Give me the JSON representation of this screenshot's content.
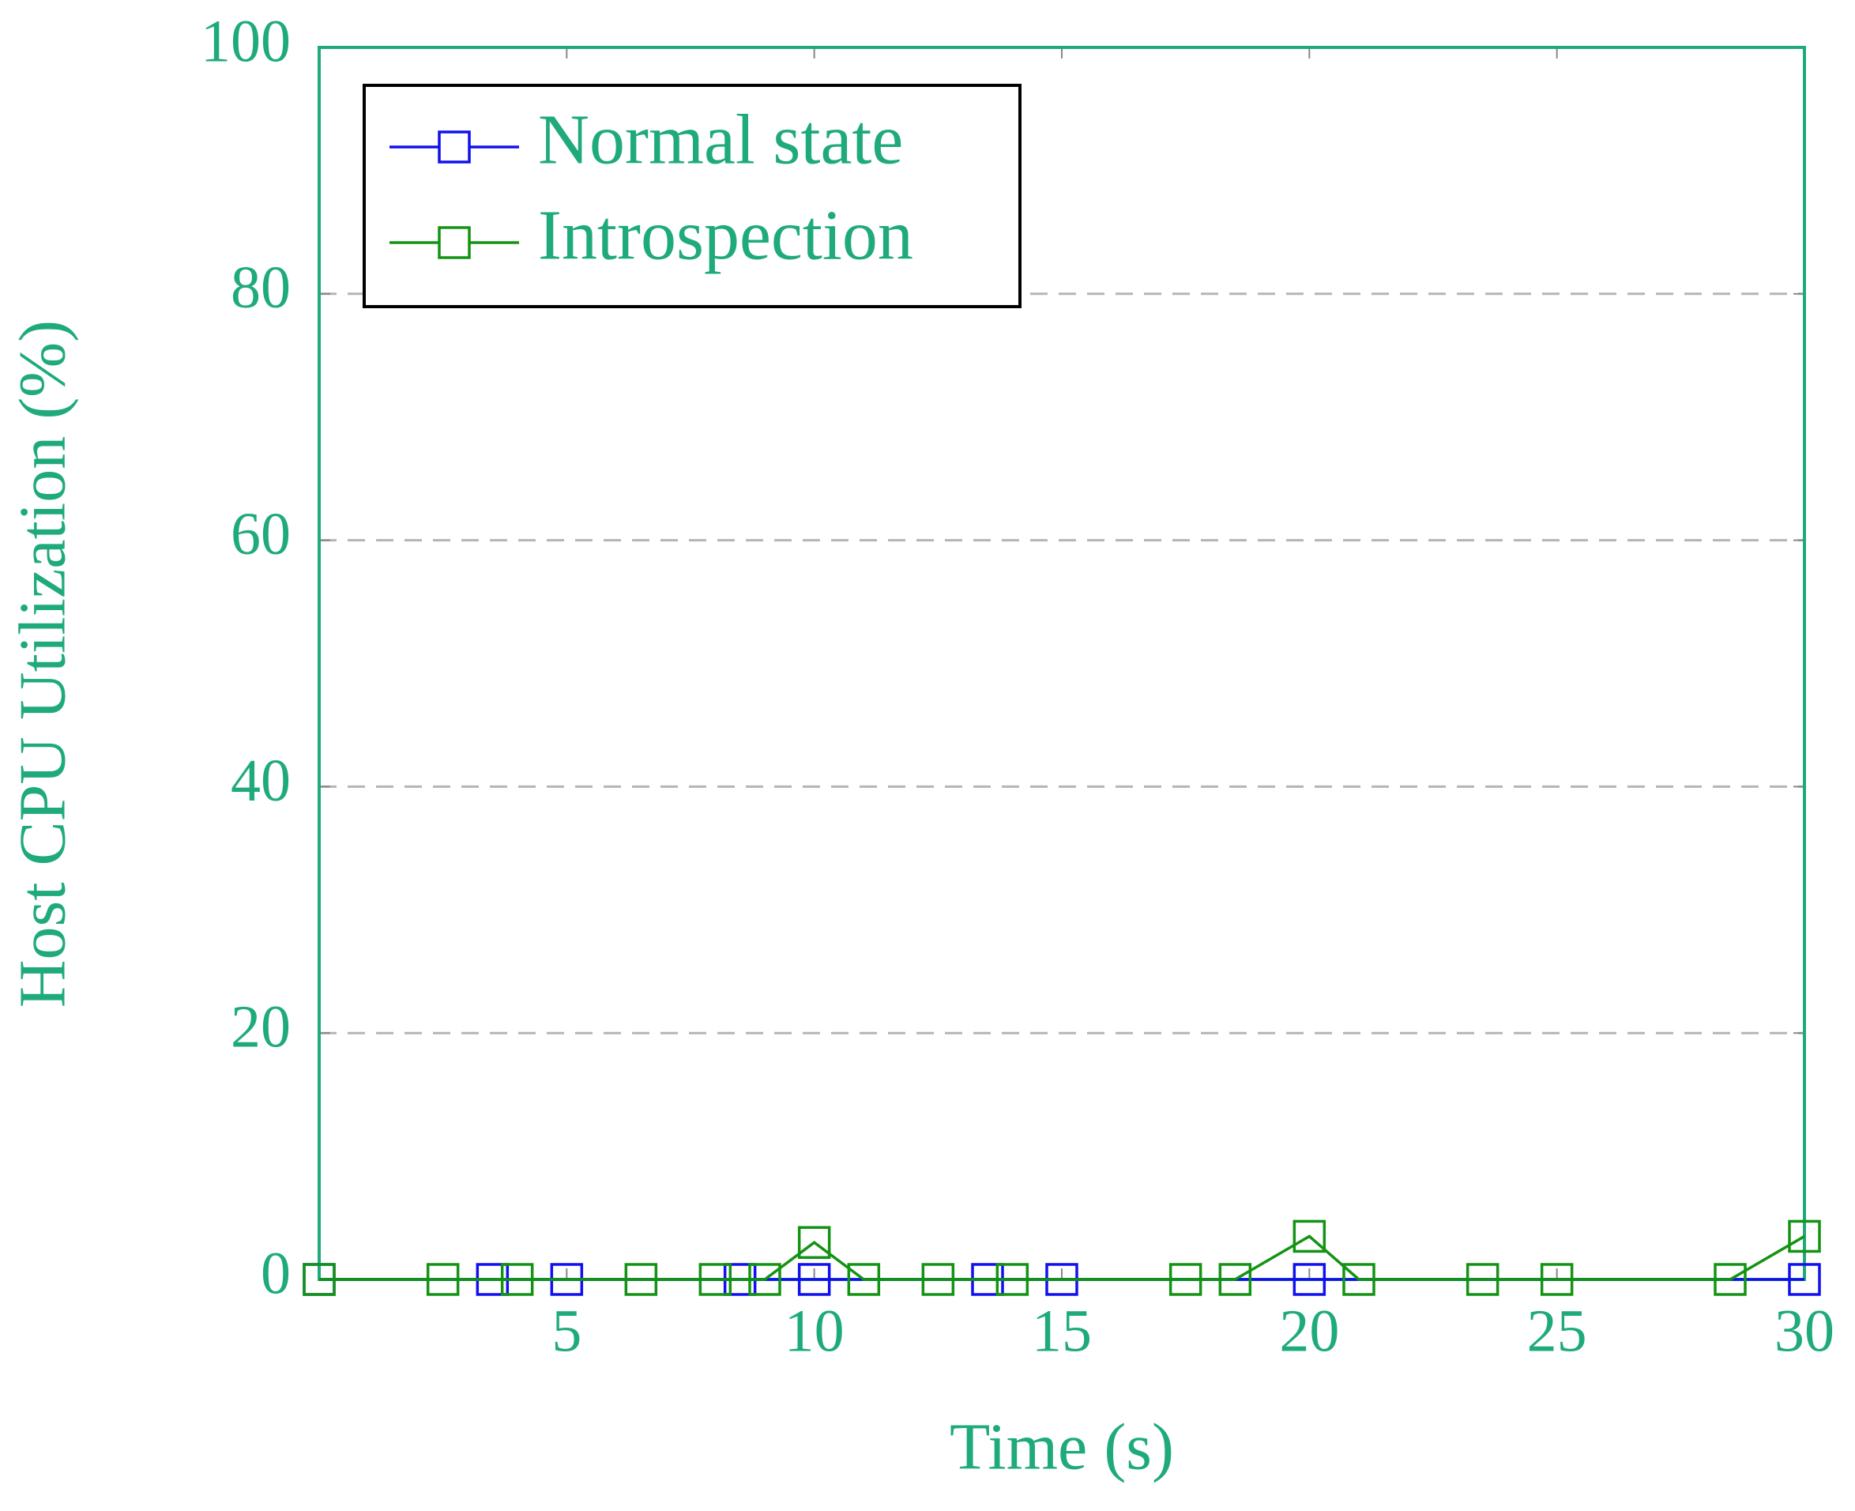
{
  "chart_data": {
    "type": "line",
    "xlabel": "Time (s)",
    "ylabel": "Host CPU Utilization (%)",
    "xlim": [
      0,
      30
    ],
    "xticks": [
      5,
      10,
      15,
      20,
      25,
      30
    ],
    "ylim": [
      0,
      100
    ],
    "yticks": [
      0,
      20,
      40,
      60,
      80,
      100
    ],
    "grid": true,
    "legend": "upper left",
    "axis_color": "#1faa7c",
    "series": [
      {
        "name": "Normal state",
        "color": "#1010ee",
        "marker": "square",
        "x": [
          0,
          3.5,
          5,
          8.5,
          10,
          13.5,
          15,
          20,
          30
        ],
        "values": [
          0,
          0,
          0,
          0,
          0,
          0,
          0,
          0,
          0
        ]
      },
      {
        "name": "Introspection",
        "color": "#139313",
        "marker": "square",
        "x": [
          0,
          2.5,
          4,
          6.5,
          8,
          9,
          10,
          11,
          12.5,
          14,
          17.5,
          18.5,
          20,
          21,
          23.5,
          25,
          28.5,
          30
        ],
        "values": [
          0,
          0,
          0,
          0,
          0,
          0,
          3,
          0,
          0,
          0,
          0,
          0,
          3.5,
          0,
          0,
          0,
          0,
          3.5
        ]
      }
    ]
  }
}
